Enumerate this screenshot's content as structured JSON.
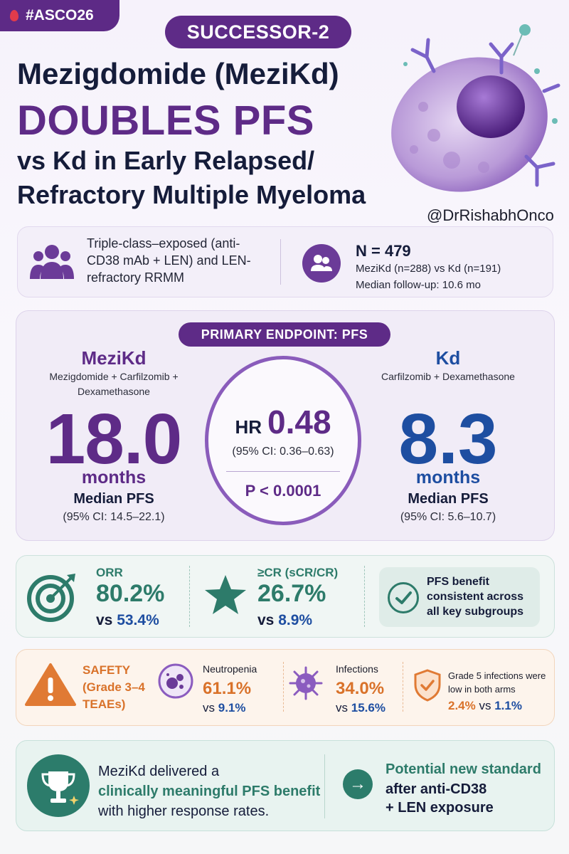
{
  "header": {
    "hashtag": "#ASCO26",
    "trial_name": "SUCCESSOR-2",
    "title_line1": "Mezigdomide (MeziKd)",
    "title_line2": "DOUBLES PFS",
    "title_line3": "vs Kd in Early Relapsed/",
    "title_line4": "Refractory Multiple Myeloma",
    "handle": "@DrRishabhOnco"
  },
  "population": {
    "description": "Triple-class–exposed (anti-CD38 mAb + LEN) and LEN-refractory RRMM",
    "n_title": "N = 479",
    "arms": "MeziKd (n=288) vs Kd (n=191)",
    "follow_up": "Median follow-up: 10.6 mo"
  },
  "primary_endpoint": {
    "label": "PRIMARY ENDPOINT: PFS",
    "left_arm": {
      "name": "MeziKd",
      "description": "Mezigdomide + Carfilzomib + Dexamethasone",
      "value": "18.0",
      "unit": "months",
      "metric": "Median PFS",
      "ci": "(95% CI: 14.5–22.1)"
    },
    "right_arm": {
      "name": "Kd",
      "description": "Carfilzomib + Dexamethasone",
      "value": "8.3",
      "unit": "months",
      "metric": "Median PFS",
      "ci": "(95% CI: 5.6–10.7)"
    },
    "hazard_ratio": {
      "label": "HR",
      "value": "0.48",
      "ci": "(95% CI: 0.36–0.63)",
      "p_value": "P < 0.0001"
    }
  },
  "response": {
    "orr": {
      "label": "ORR",
      "value": "80.2%",
      "vs_prefix": "vs",
      "vs_value": "53.4%"
    },
    "cr": {
      "label": "≥CR (sCR/CR)",
      "value": "26.7%",
      "vs_prefix": "vs",
      "vs_value": "8.9%"
    },
    "consistency": "PFS benefit consistent across all key subgroups"
  },
  "safety": {
    "label": "SAFETY (Grade 3–4 TEAEs)",
    "neutropenia": {
      "label": "Neutropenia",
      "value": "61.1%",
      "vs_prefix": "vs",
      "vs_value": "9.1%"
    },
    "infections": {
      "label": "Infections",
      "value": "34.0%",
      "vs_prefix": "vs",
      "vs_value": "15.6%"
    },
    "grade5": {
      "text": "Grade 5 infections were low in both arms",
      "value": "2.4%",
      "vs_prefix": "vs",
      "vs_value": "1.1%"
    }
  },
  "conclusion": {
    "text_before": "MeziKd delivered a",
    "highlight": "clinically meaningful PFS benefit",
    "text_after": "with higher response rates.",
    "standard_line1": "Potential new standard",
    "standard_line2": "after anti-CD38",
    "standard_line3": "+ LEN exposure"
  },
  "colors": {
    "purple": "#5e2b87",
    "blue": "#1e4ea1",
    "teal": "#2d7b6a",
    "orange": "#d9722a",
    "navy": "#151c3a"
  }
}
